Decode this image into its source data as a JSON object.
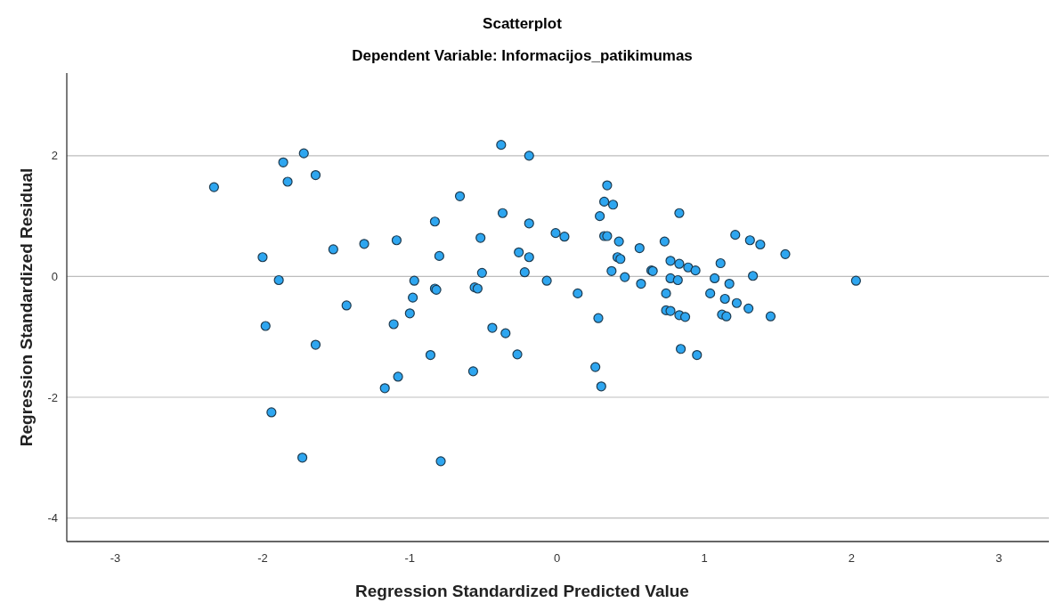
{
  "chart_data": {
    "type": "scatter",
    "title": "Scatterplot",
    "subtitle": "Dependent Variable: Informacijos_patikimumas",
    "xlabel": "Regression Standardized Predicted Value",
    "ylabel": "Regression Standardized Residual",
    "xlim": [
      -3.33,
      3.34
    ],
    "ylim": [
      -4.39,
      3.37
    ],
    "xticks": [
      -3,
      -2,
      -1,
      0,
      1,
      2,
      3
    ],
    "yticks": [
      -4,
      -2,
      0,
      2
    ],
    "grid": "y",
    "marker": "circle",
    "series": [
      {
        "color": "#2ea6f0",
        "x": [
          -2.33,
          -2.0,
          -1.98,
          -1.94,
          -1.89,
          -1.86,
          -1.83,
          -1.72,
          -1.73,
          -1.64,
          -1.64,
          -1.52,
          -1.43,
          -1.31,
          -1.17,
          -1.11,
          -1.09,
          -1.08,
          -1.0,
          -0.98,
          -0.97,
          -0.86,
          -0.83,
          -0.83,
          -0.82,
          -0.8,
          -0.79,
          -0.66,
          -0.57,
          -0.56,
          -0.54,
          -0.52,
          -0.51,
          -0.44,
          -0.38,
          -0.37,
          -0.35,
          -0.27,
          -0.26,
          -0.22,
          -0.19,
          -0.19,
          -0.19,
          -0.07,
          -0.01,
          0.05,
          0.14,
          0.26,
          0.29,
          0.28,
          0.3,
          0.34,
          0.32,
          0.38,
          0.32,
          0.34,
          0.42,
          0.56,
          0.73,
          0.41,
          0.43,
          0.37,
          0.46,
          0.57,
          0.64,
          0.65,
          0.77,
          0.83,
          0.89,
          0.94,
          0.77,
          0.82,
          0.74,
          0.74,
          0.77,
          0.83,
          0.87,
          0.84,
          0.95,
          0.83,
          1.21,
          1.31,
          1.38,
          1.55,
          1.11,
          1.07,
          1.17,
          1.33,
          1.04,
          1.14,
          1.22,
          1.3,
          1.12,
          1.15,
          1.45,
          2.03
        ],
        "values": [
          1.48,
          0.32,
          -0.82,
          -2.25,
          -0.06,
          1.89,
          1.57,
          2.04,
          -3.0,
          1.68,
          -1.13,
          0.45,
          -0.48,
          0.54,
          -1.85,
          -0.79,
          0.6,
          -1.66,
          -0.61,
          -0.35,
          -0.07,
          -1.3,
          0.91,
          -0.2,
          -0.22,
          0.34,
          -3.06,
          1.33,
          -1.57,
          -0.18,
          -0.2,
          0.64,
          0.06,
          -0.85,
          2.18,
          1.05,
          -0.94,
          -1.29,
          0.4,
          0.07,
          0.88,
          2.0,
          0.32,
          -0.07,
          0.72,
          0.66,
          -0.28,
          -1.5,
          1.0,
          -0.69,
          -1.82,
          1.51,
          1.24,
          1.19,
          0.67,
          0.67,
          0.58,
          0.47,
          0.58,
          0.32,
          0.29,
          0.09,
          -0.01,
          -0.12,
          0.1,
          0.09,
          0.26,
          0.21,
          0.15,
          0.1,
          -0.03,
          -0.06,
          -0.28,
          -0.56,
          -0.57,
          -0.64,
          -0.67,
          -1.2,
          -1.3,
          1.05,
          0.69,
          0.6,
          0.53,
          0.37,
          0.22,
          -0.03,
          -0.12,
          0.01,
          -0.28,
          -0.37,
          -0.44,
          -0.53,
          -0.63,
          -0.66,
          -0.66,
          -0.07
        ]
      }
    ]
  }
}
